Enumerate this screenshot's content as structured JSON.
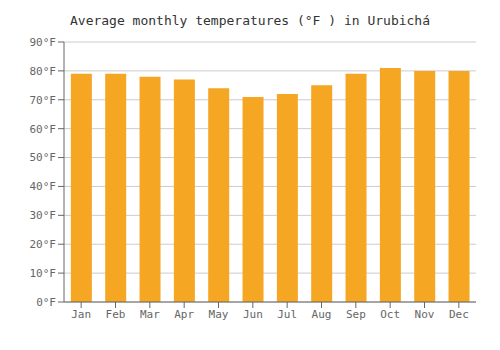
{
  "chart_data": {
    "type": "bar",
    "title": "Average monthly temperatures (°F ) in Urubichá",
    "categories": [
      "Jan",
      "Feb",
      "Mar",
      "Apr",
      "May",
      "Jun",
      "Jul",
      "Aug",
      "Sep",
      "Oct",
      "Nov",
      "Dec"
    ],
    "values": [
      79,
      79,
      78,
      77,
      74,
      71,
      72,
      75,
      79,
      81,
      80,
      80
    ],
    "color": "#F5A623",
    "ylim": [
      0,
      90
    ],
    "yticks": [
      {
        "value": 0,
        "label": "0°F"
      },
      {
        "value": 10,
        "label": "10°F"
      },
      {
        "value": 20,
        "label": "20°F"
      },
      {
        "value": 30,
        "label": "30°F"
      },
      {
        "value": 40,
        "label": "40°F"
      },
      {
        "value": 50,
        "label": "50°F"
      },
      {
        "value": 60,
        "label": "60°F"
      },
      {
        "value": 70,
        "label": "70°F"
      },
      {
        "value": 80,
        "label": "80°F"
      },
      {
        "value": 90,
        "label": "90°F"
      }
    ],
    "grid": true
  }
}
